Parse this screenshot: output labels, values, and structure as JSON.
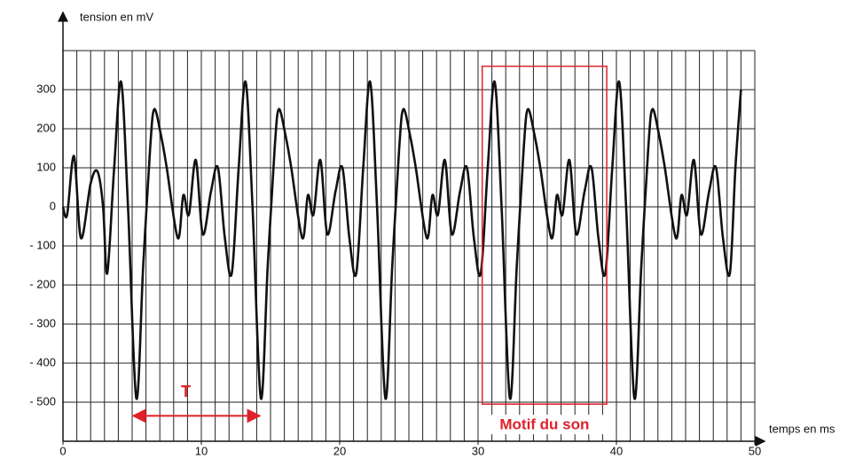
{
  "chart_data": {
    "type": "line",
    "y_label": "tension en mV",
    "x_label": "temps en ms",
    "x": [
      0,
      0.3,
      0.8,
      1.3,
      2.0,
      2.5,
      2.9,
      3.2,
      3.7,
      4.2,
      4.7,
      5.3,
      5.8,
      6.3,
      6.6,
      7.1,
      7.5,
      8.3,
      8.7,
      9.1,
      9.6,
      10.1,
      10.7,
      11.2,
      11.7,
      12.2,
      12.7,
      13.2,
      13.7,
      14.3,
      14.8,
      15.3,
      15.6,
      16.1,
      16.5,
      17.3,
      17.7,
      18.1,
      18.6,
      19.1,
      19.7,
      20.2,
      20.7,
      21.2,
      21.7,
      22.2,
      22.7,
      23.3,
      23.8,
      24.3,
      24.6,
      25.1,
      25.5,
      26.3,
      26.7,
      27.1,
      27.6,
      28.1,
      28.7,
      29.2,
      29.7,
      30.2,
      30.7,
      31.2,
      31.7,
      32.3,
      32.8,
      33.3,
      33.6,
      34.1,
      34.5,
      35.3,
      35.7,
      36.1,
      36.6,
      37.1,
      37.7,
      38.2,
      38.7,
      39.2,
      39.7,
      40.2,
      40.7,
      41.3,
      41.8,
      42.3,
      42.6,
      43.1,
      43.5,
      44.3,
      44.7,
      45.1,
      45.6,
      46.1,
      46.7,
      47.2,
      47.7,
      48.2,
      48.6,
      49.0
    ],
    "series": [
      {
        "color": "#111111",
        "values": [
          0,
          -20,
          130,
          -80,
          60,
          90,
          0,
          -170,
          100,
          320,
          0,
          -490,
          -150,
          150,
          250,
          180,
          100,
          -80,
          30,
          -20,
          120,
          -70,
          40,
          100,
          -80,
          -170,
          100,
          320,
          0,
          -490,
          -150,
          150,
          250,
          180,
          100,
          -80,
          30,
          -20,
          120,
          -70,
          40,
          100,
          -80,
          -170,
          100,
          320,
          0,
          -490,
          -150,
          150,
          250,
          180,
          100,
          -80,
          30,
          -20,
          120,
          -70,
          40,
          100,
          -80,
          -170,
          100,
          320,
          0,
          -490,
          -150,
          150,
          250,
          180,
          100,
          -80,
          30,
          -20,
          120,
          -70,
          40,
          100,
          -80,
          -170,
          100,
          320,
          0,
          -490,
          -150,
          150,
          250,
          180,
          100,
          -80,
          30,
          -20,
          120,
          -70,
          40,
          100,
          -80,
          -170,
          100,
          300
        ]
      }
    ],
    "xlim": [
      0,
      50
    ],
    "ylim": [
      -600,
      400
    ],
    "xticks": [
      0,
      10,
      20,
      30,
      40,
      50
    ],
    "yticks": [
      300,
      200,
      100,
      0,
      {
        "value": -100,
        "label": "- 100"
      },
      {
        "value": -200,
        "label": "- 200"
      },
      {
        "value": -300,
        "label": "- 300"
      },
      {
        "value": -400,
        "label": "- 400"
      },
      {
        "value": -500,
        "label": "- 500"
      }
    ],
    "x_grid": [
      1,
      2,
      3,
      4,
      5,
      6,
      7,
      8,
      9,
      10,
      11,
      12,
      13,
      14,
      15,
      16,
      17,
      18,
      19,
      20,
      21,
      22,
      23,
      24,
      25,
      26,
      27,
      28,
      29,
      30,
      31,
      32,
      33,
      34,
      35,
      36,
      37,
      38,
      39,
      40,
      41,
      42,
      43,
      44,
      45,
      46,
      47,
      48,
      49,
      50
    ],
    "y_grid": [
      400,
      -600
    ],
    "annotations": [
      {
        "text": "T",
        "color": "#e0202a",
        "arrow_x": [
          5.1,
          14.2
        ],
        "arrow_y": -535
      },
      {
        "text": "Motif du son",
        "color": "#e0202a",
        "box_x": [
          30.3,
          39.3
        ],
        "box_y": [
          -505,
          360
        ]
      }
    ]
  }
}
